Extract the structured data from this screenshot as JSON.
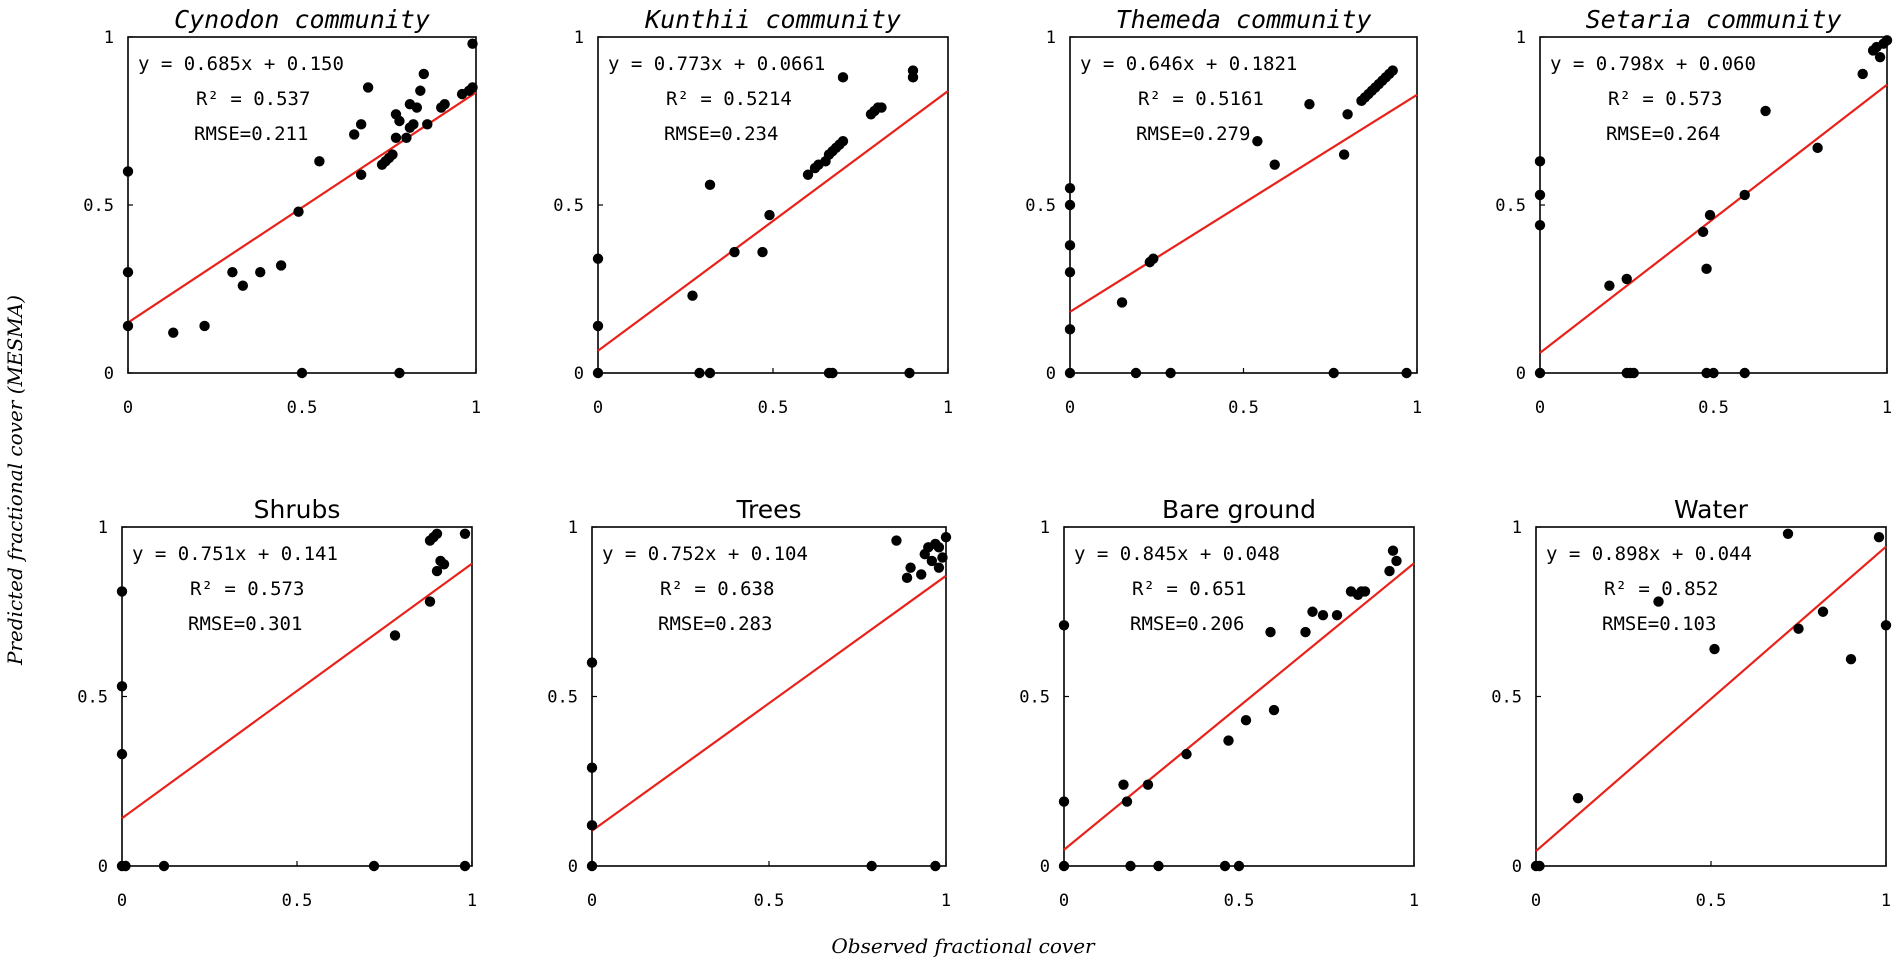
{
  "figure": {
    "ylabel": "Predicted fractional cover (MESMA)",
    "xlabel": "Observed fractional cover"
  },
  "colors": {
    "fit_line": "#e8221a",
    "point": "#000000",
    "axes": "#000000"
  },
  "chart_data": [
    {
      "type": "scatter",
      "title": "Cynodon community",
      "title_style": "italic",
      "equation": "y = 0.685x + 0.150",
      "r2": "R² = 0.537",
      "rmse": "RMSE=0.211",
      "fit": {
        "slope": 0.685,
        "intercept": 0.15
      },
      "xlim": [
        0,
        1
      ],
      "ylim": [
        0,
        1
      ],
      "xticks": [
        "0",
        "0.5",
        "1"
      ],
      "yticks": [
        "0",
        "0.5",
        "1"
      ],
      "points": [
        [
          0,
          0.6
        ],
        [
          0,
          0.3
        ],
        [
          0,
          0.14
        ],
        [
          0.13,
          0.12
        ],
        [
          0.22,
          0.14
        ],
        [
          0.3,
          0.3
        ],
        [
          0.33,
          0.26
        ],
        [
          0.38,
          0.3
        ],
        [
          0.44,
          0.32
        ],
        [
          0.49,
          0.48
        ],
        [
          0.5,
          0
        ],
        [
          0.55,
          0.63
        ],
        [
          0.65,
          0.71
        ],
        [
          0.67,
          0.74
        ],
        [
          0.67,
          0.59
        ],
        [
          0.69,
          0.85
        ],
        [
          0.73,
          0.62
        ],
        [
          0.74,
          0.63
        ],
        [
          0.75,
          0.64
        ],
        [
          0.76,
          0.65
        ],
        [
          0.77,
          0.77
        ],
        [
          0.77,
          0.7
        ],
        [
          0.78,
          0.75
        ],
        [
          0.78,
          0
        ],
        [
          0.8,
          0.7
        ],
        [
          0.81,
          0.73
        ],
        [
          0.81,
          0.8
        ],
        [
          0.82,
          0.74
        ],
        [
          0.83,
          0.79
        ],
        [
          0.84,
          0.84
        ],
        [
          0.85,
          0.89
        ],
        [
          0.86,
          0.74
        ],
        [
          0.9,
          0.79
        ],
        [
          0.91,
          0.8
        ],
        [
          0.96,
          0.83
        ],
        [
          0.98,
          0.84
        ],
        [
          0.99,
          0.85
        ],
        [
          0.99,
          0.98
        ]
      ]
    },
    {
      "type": "scatter",
      "title": "Kunthii community",
      "title_style": "italic",
      "equation": "y = 0.773x + 0.0661",
      "r2": "R² = 0.5214",
      "rmse": "RMSE=0.234",
      "fit": {
        "slope": 0.773,
        "intercept": 0.0661
      },
      "xlim": [
        0,
        1
      ],
      "ylim": [
        0,
        1
      ],
      "xticks": [
        "0",
        "0.5",
        "1"
      ],
      "yticks": [
        "0",
        "0.5",
        "1"
      ],
      "points": [
        [
          0,
          0.34
        ],
        [
          0,
          0.14
        ],
        [
          0,
          0
        ],
        [
          0.27,
          0.23
        ],
        [
          0.29,
          0
        ],
        [
          0.32,
          0
        ],
        [
          0.32,
          0.56
        ],
        [
          0.39,
          0.36
        ],
        [
          0.47,
          0.36
        ],
        [
          0.49,
          0.47
        ],
        [
          0.6,
          0.59
        ],
        [
          0.62,
          0.61
        ],
        [
          0.63,
          0.62
        ],
        [
          0.65,
          0.63
        ],
        [
          0.66,
          0.65
        ],
        [
          0.66,
          0
        ],
        [
          0.67,
          0.66
        ],
        [
          0.67,
          0
        ],
        [
          0.68,
          0.67
        ],
        [
          0.69,
          0.68
        ],
        [
          0.7,
          0.69
        ],
        [
          0.7,
          0.88
        ],
        [
          0.78,
          0.77
        ],
        [
          0.79,
          0.78
        ],
        [
          0.8,
          0.79
        ],
        [
          0.81,
          0.79
        ],
        [
          0.89,
          0
        ],
        [
          0.9,
          0.88
        ],
        [
          0.9,
          0.9
        ]
      ]
    },
    {
      "type": "scatter",
      "title": "Themeda community",
      "title_style": "italic",
      "equation": "y = 0.646x + 0.1821",
      "r2": "R² = 0.5161",
      "rmse": "RMSE=0.279",
      "fit": {
        "slope": 0.646,
        "intercept": 0.1821
      },
      "xlim": [
        0,
        1
      ],
      "ylim": [
        0,
        1
      ],
      "xticks": [
        "0",
        "0.5",
        "1"
      ],
      "yticks": [
        "0",
        "0.5",
        "1"
      ],
      "points": [
        [
          0,
          0.55
        ],
        [
          0,
          0.5
        ],
        [
          0,
          0.38
        ],
        [
          0,
          0.3
        ],
        [
          0,
          0.13
        ],
        [
          0,
          0
        ],
        [
          0.15,
          0.21
        ],
        [
          0.19,
          0
        ],
        [
          0.23,
          0.33
        ],
        [
          0.24,
          0.34
        ],
        [
          0.29,
          0
        ],
        [
          0.54,
          0.69
        ],
        [
          0.59,
          0.62
        ],
        [
          0.69,
          0.8
        ],
        [
          0.76,
          0
        ],
        [
          0.79,
          0.65
        ],
        [
          0.8,
          0.77
        ],
        [
          0.84,
          0.81
        ],
        [
          0.85,
          0.82
        ],
        [
          0.86,
          0.83
        ],
        [
          0.87,
          0.84
        ],
        [
          0.88,
          0.85
        ],
        [
          0.89,
          0.86
        ],
        [
          0.9,
          0.87
        ],
        [
          0.91,
          0.88
        ],
        [
          0.92,
          0.89
        ],
        [
          0.93,
          0.9
        ],
        [
          0.97,
          0
        ]
      ]
    },
    {
      "type": "scatter",
      "title": "Setaria community",
      "title_style": "italic",
      "equation": "y = 0.798x + 0.060",
      "r2": "R² = 0.573",
      "rmse": "RMSE=0.264",
      "fit": {
        "slope": 0.798,
        "intercept": 0.06
      },
      "xlim": [
        0,
        1
      ],
      "ylim": [
        0,
        1
      ],
      "xticks": [
        "0",
        "0.5",
        "1"
      ],
      "yticks": [
        "0",
        "0.5",
        "1"
      ],
      "points": [
        [
          0,
          0.63
        ],
        [
          0,
          0.53
        ],
        [
          0,
          0.44
        ],
        [
          0,
          0
        ],
        [
          0.2,
          0.26
        ],
        [
          0.25,
          0.28
        ],
        [
          0.25,
          0
        ],
        [
          0.26,
          0
        ],
        [
          0.27,
          0
        ],
        [
          0.47,
          0.42
        ],
        [
          0.48,
          0.31
        ],
        [
          0.48,
          0
        ],
        [
          0.49,
          0.47
        ],
        [
          0.5,
          0
        ],
        [
          0.59,
          0.53
        ],
        [
          0.59,
          0
        ],
        [
          0.65,
          0.78
        ],
        [
          0.8,
          0.67
        ],
        [
          0.93,
          0.89
        ],
        [
          0.96,
          0.96
        ],
        [
          0.97,
          0.97
        ],
        [
          0.98,
          0.94
        ],
        [
          0.99,
          0.98
        ],
        [
          1,
          0.99
        ]
      ]
    },
    {
      "type": "scatter",
      "title": "Shrubs",
      "title_style": "normal",
      "equation": "y = 0.751x + 0.141",
      "r2": "R² = 0.573",
      "rmse": "RMSE=0.301",
      "fit": {
        "slope": 0.751,
        "intercept": 0.141
      },
      "xlim": [
        0,
        1
      ],
      "ylim": [
        0,
        1
      ],
      "xticks": [
        "0",
        "0.5",
        "1"
      ],
      "yticks": [
        "0",
        "0.5",
        "1"
      ],
      "points": [
        [
          0,
          0.81
        ],
        [
          0,
          0.53
        ],
        [
          0,
          0.33
        ],
        [
          0,
          0
        ],
        [
          0.01,
          0
        ],
        [
          0.12,
          0
        ],
        [
          0.72,
          0
        ],
        [
          0.78,
          0.68
        ],
        [
          0.88,
          0.78
        ],
        [
          0.88,
          0.96
        ],
        [
          0.89,
          0.97
        ],
        [
          0.9,
          0.98
        ],
        [
          0.9,
          0.87
        ],
        [
          0.91,
          0.9
        ],
        [
          0.92,
          0.89
        ],
        [
          0.98,
          0
        ],
        [
          0.98,
          0.98
        ]
      ]
    },
    {
      "type": "scatter",
      "title": "Trees",
      "title_style": "normal",
      "equation": "y = 0.752x + 0.104",
      "r2": "R² = 0.638",
      "rmse": "RMSE=0.283",
      "fit": {
        "slope": 0.752,
        "intercept": 0.104
      },
      "xlim": [
        0,
        1
      ],
      "ylim": [
        0,
        1
      ],
      "xticks": [
        "0",
        "0.5",
        "1"
      ],
      "yticks": [
        "0",
        "0.5",
        "1"
      ],
      "points": [
        [
          0,
          0.6
        ],
        [
          0,
          0.29
        ],
        [
          0,
          0.12
        ],
        [
          0,
          0
        ],
        [
          0.79,
          0
        ],
        [
          0.86,
          0.96
        ],
        [
          0.89,
          0.85
        ],
        [
          0.9,
          0.88
        ],
        [
          0.93,
          0.86
        ],
        [
          0.94,
          0.92
        ],
        [
          0.95,
          0.94
        ],
        [
          0.96,
          0.9
        ],
        [
          0.97,
          0.95
        ],
        [
          0.97,
          0
        ],
        [
          0.98,
          0.88
        ],
        [
          0.98,
          0.94
        ],
        [
          0.99,
          0.91
        ],
        [
          1,
          0.97
        ]
      ]
    },
    {
      "type": "scatter",
      "title": "Bare ground",
      "title_style": "normal",
      "equation": "y = 0.845x + 0.048",
      "r2": "R² = 0.651",
      "rmse": "RMSE=0.206",
      "fit": {
        "slope": 0.845,
        "intercept": 0.048
      },
      "xlim": [
        0,
        1
      ],
      "ylim": [
        0,
        1
      ],
      "xticks": [
        "0",
        "0.5",
        "1"
      ],
      "yticks": [
        "0",
        "0.5",
        "1"
      ],
      "points": [
        [
          0,
          0.71
        ],
        [
          0,
          0.19
        ],
        [
          0,
          0
        ],
        [
          0.17,
          0.24
        ],
        [
          0.18,
          0.19
        ],
        [
          0.19,
          0
        ],
        [
          0.24,
          0.24
        ],
        [
          0.27,
          0
        ],
        [
          0.35,
          0.33
        ],
        [
          0.46,
          0
        ],
        [
          0.47,
          0.37
        ],
        [
          0.5,
          0
        ],
        [
          0.52,
          0.43
        ],
        [
          0.59,
          0.69
        ],
        [
          0.6,
          0.46
        ],
        [
          0.69,
          0.69
        ],
        [
          0.71,
          0.75
        ],
        [
          0.74,
          0.74
        ],
        [
          0.78,
          0.74
        ],
        [
          0.82,
          0.81
        ],
        [
          0.84,
          0.8
        ],
        [
          0.85,
          0.81
        ],
        [
          0.86,
          0.81
        ],
        [
          0.93,
          0.87
        ],
        [
          0.94,
          0.93
        ],
        [
          0.95,
          0.9
        ]
      ]
    },
    {
      "type": "scatter",
      "title": "Water",
      "title_style": "normal",
      "equation": "y = 0.898x + 0.044",
      "r2": "R² = 0.852",
      "rmse": "RMSE=0.103",
      "fit": {
        "slope": 0.898,
        "intercept": 0.044
      },
      "xlim": [
        0,
        1
      ],
      "ylim": [
        0,
        1
      ],
      "xticks": [
        "0",
        "0.5",
        "1"
      ],
      "yticks": [
        "0",
        "0.5",
        "1"
      ],
      "points": [
        [
          0,
          0
        ],
        [
          0.01,
          0
        ],
        [
          0.12,
          0.2
        ],
        [
          0.35,
          0.78
        ],
        [
          0.51,
          0.64
        ],
        [
          0.72,
          0.98
        ],
        [
          0.75,
          0.7
        ],
        [
          0.82,
          0.75
        ],
        [
          0.9,
          0.61
        ],
        [
          0.98,
          0.97
        ],
        [
          1,
          0.71
        ]
      ]
    }
  ]
}
